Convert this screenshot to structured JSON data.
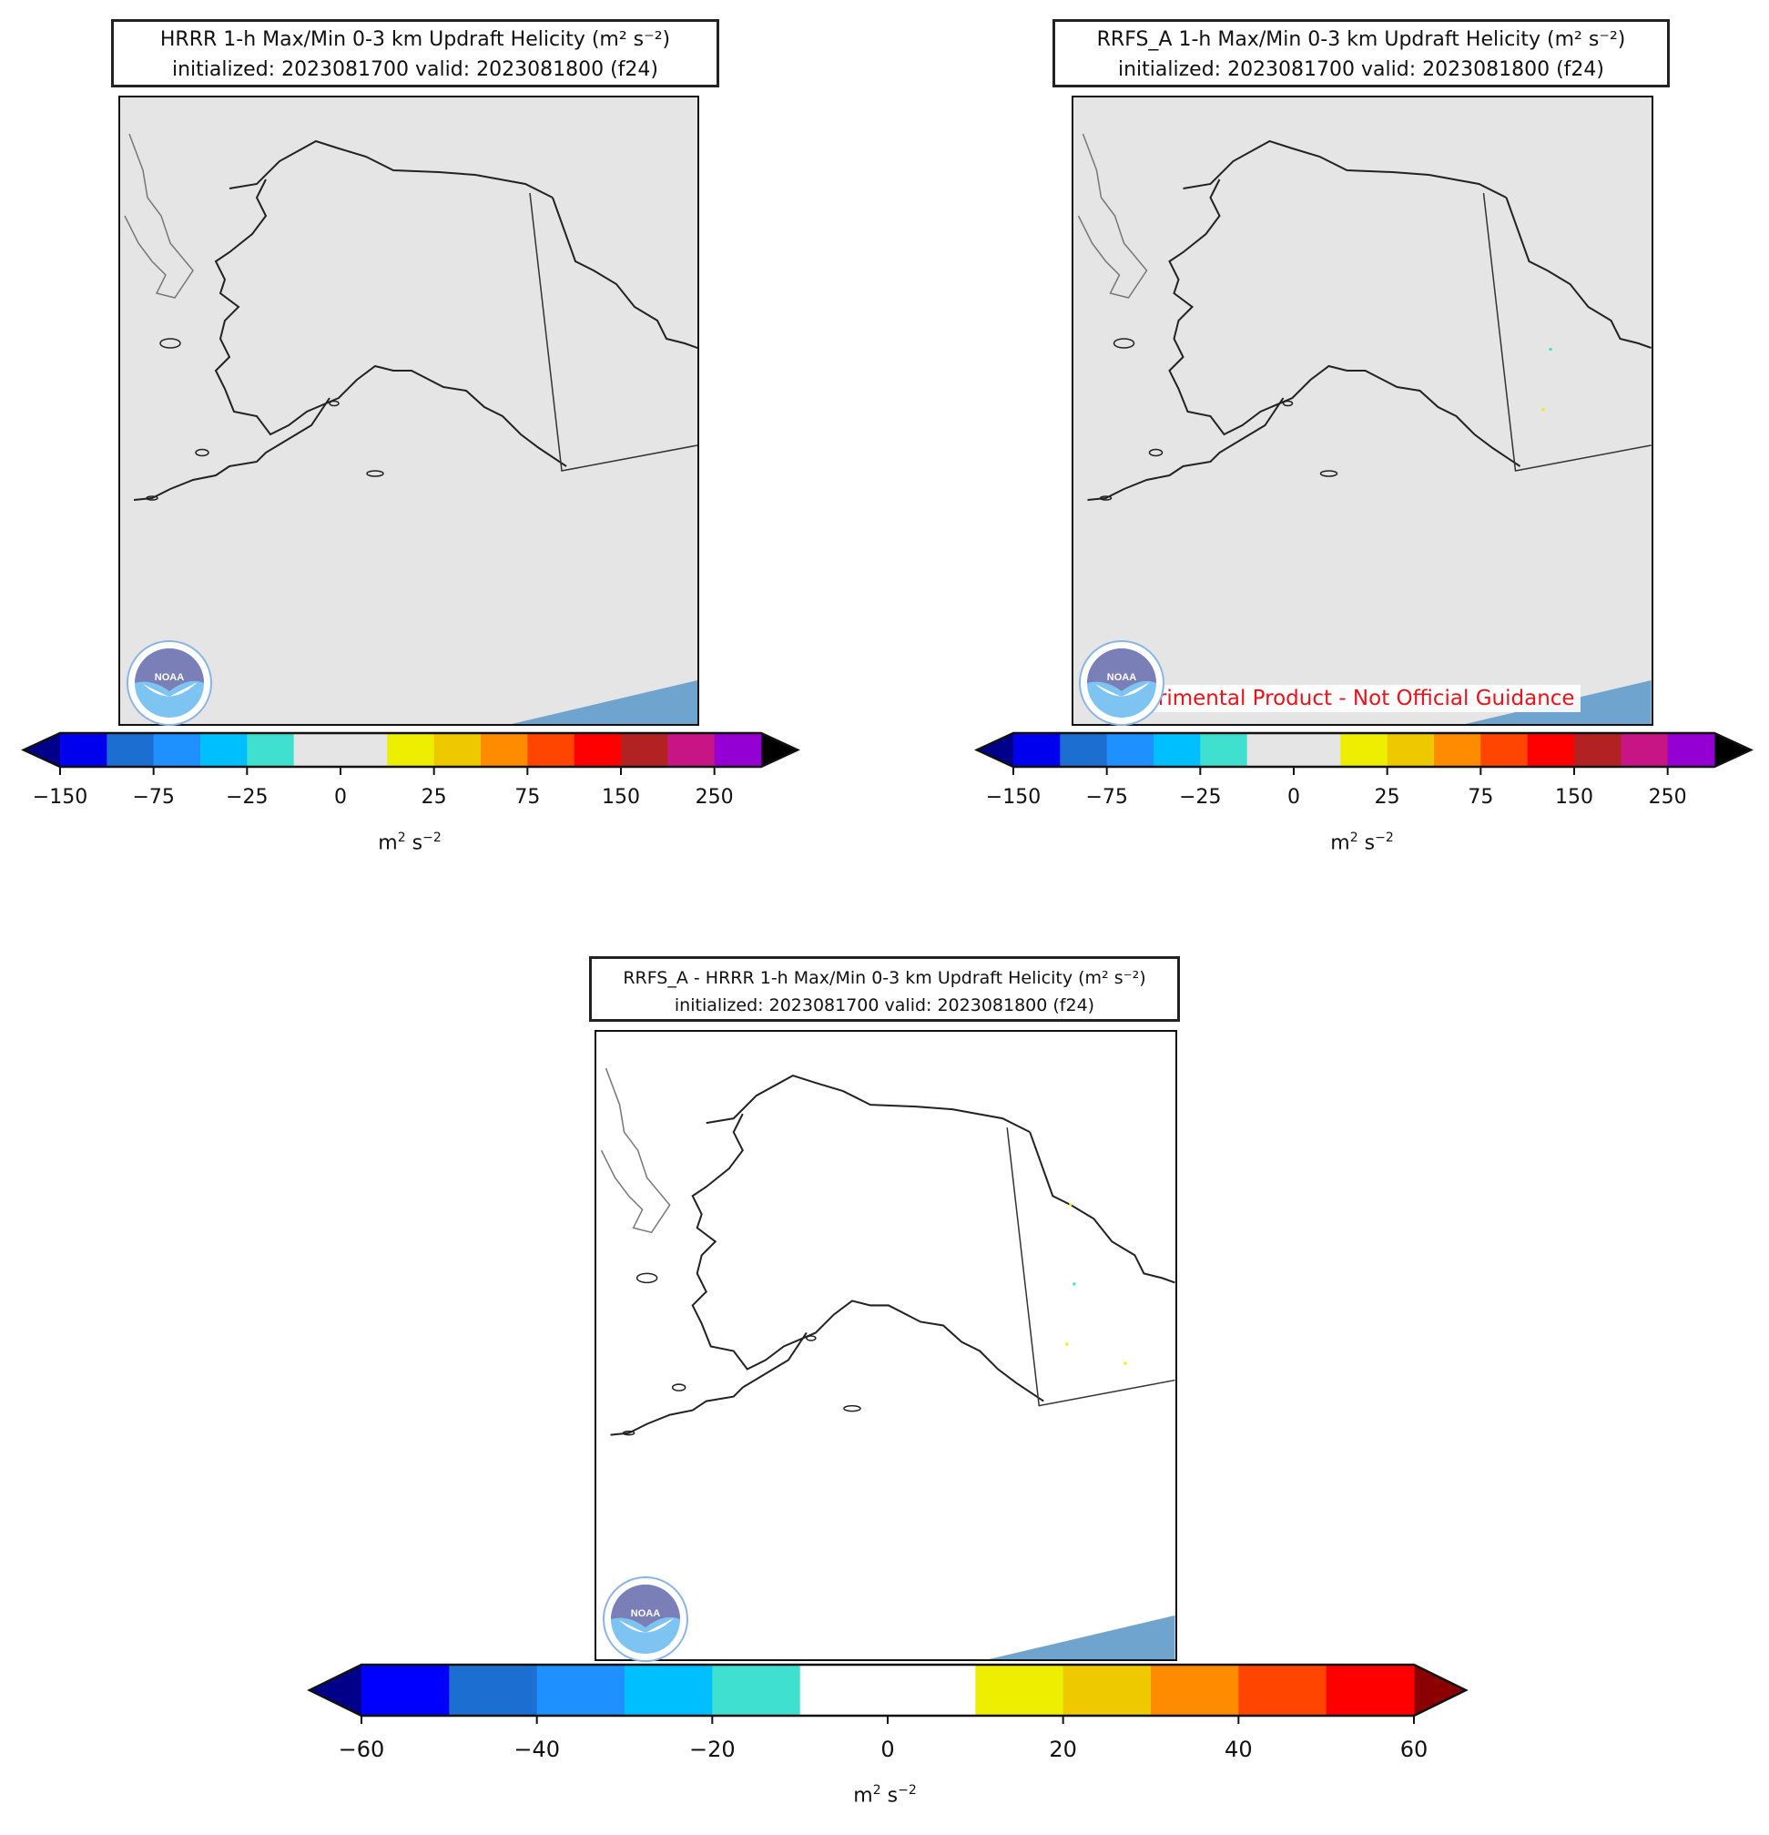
{
  "panels": [
    {
      "id": "hrrr",
      "title_line1": "HRRR 1-h Max/Min 0-3 km Updraft Helicity (m² s⁻²)",
      "title_line2": "initialized: 2023081700 valid: 2023081800 (f24)",
      "background": "#e5e5e5",
      "features": [
        "alaska-coastline",
        "canada-border",
        "ocean-shading"
      ],
      "colorbar": {
        "tick_labels": [
          "−150",
          "−75",
          "−25",
          "0",
          "25",
          "75",
          "150",
          "250"
        ],
        "unit": "m² s⁻²",
        "colors": [
          "#0000ee",
          "#1c6fd0",
          "#1e90ff",
          "#00bfff",
          "#40e0d0",
          "#e5e5e5",
          "#e5e5e5",
          "#eeee00",
          "#eec900",
          "#ff8c00",
          "#ff4500",
          "#ff0000",
          "#b22222",
          "#c71585",
          "#9400d3"
        ],
        "under_color": "#00008b",
        "over_color": "#000000"
      }
    },
    {
      "id": "rrfs",
      "title_line1": "RRFS_A 1-h Max/Min 0-3 km Updraft Helicity (m² s⁻²)",
      "title_line2": "initialized: 2023081700 valid: 2023081800 (f24)",
      "background": "#e5e5e5",
      "disclaimer": "Experimental Product - Not Official Guidance",
      "features": [
        "alaska-coastline",
        "canada-border",
        "ocean-shading"
      ],
      "colorbar": {
        "tick_labels": [
          "−150",
          "−75",
          "−25",
          "0",
          "25",
          "75",
          "150",
          "250"
        ],
        "unit": "m² s⁻²",
        "colors": [
          "#0000ee",
          "#1c6fd0",
          "#1e90ff",
          "#00bfff",
          "#40e0d0",
          "#e5e5e5",
          "#e5e5e5",
          "#eeee00",
          "#eec900",
          "#ff8c00",
          "#ff4500",
          "#ff0000",
          "#b22222",
          "#c71585",
          "#9400d3"
        ],
        "under_color": "#00008b",
        "over_color": "#000000"
      }
    },
    {
      "id": "diff",
      "title_line1": "RRFS_A - HRRR 1-h Max/Min 0-3 km Updraft Helicity (m² s⁻²)",
      "title_line2": "initialized: 2023081700 valid: 2023081800 (f24)",
      "background": "#ffffff",
      "features": [
        "alaska-coastline",
        "canada-border",
        "ocean-shading"
      ],
      "colorbar": {
        "tick_labels": [
          "−60",
          "−40",
          "−20",
          "0",
          "20",
          "40",
          "60"
        ],
        "unit": "m² s⁻²",
        "colors": [
          "#0000ff",
          "#1c6fd0",
          "#1e90ff",
          "#00bfff",
          "#40e0d0",
          "#ffffff",
          "#ffffff",
          "#eeee00",
          "#eec900",
          "#ff8c00",
          "#ff4500",
          "#ff0000"
        ],
        "under_color": "#00008b",
        "over_color": "#8b0000"
      }
    }
  ],
  "logo": {
    "text": "NOAA"
  }
}
